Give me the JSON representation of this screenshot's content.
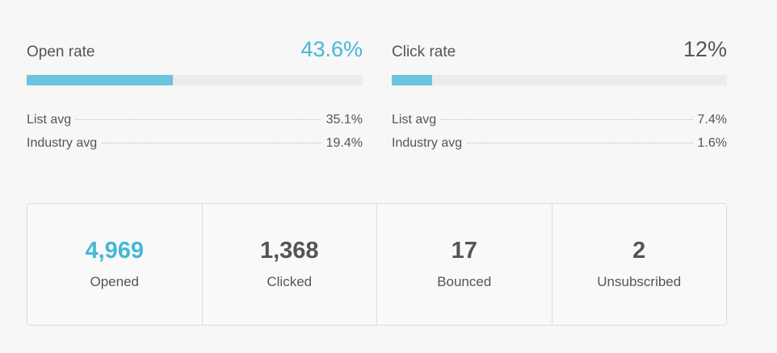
{
  "metrics": [
    {
      "label": "Open rate",
      "value": 43.6,
      "value_label": "43.6%",
      "accent": true,
      "comparisons": [
        {
          "label": "List avg",
          "value": "35.1%"
        },
        {
          "label": "Industry avg",
          "value": "19.4%"
        }
      ]
    },
    {
      "label": "Click rate",
      "value": 12,
      "value_label": "12%",
      "accent": false,
      "comparisons": [
        {
          "label": "List avg",
          "value": "7.4%"
        },
        {
          "label": "Industry avg",
          "value": "1.6%"
        }
      ]
    }
  ],
  "stats": [
    {
      "value": "4,969",
      "label": "Opened"
    },
    {
      "value": "1,368",
      "label": "Clicked"
    },
    {
      "value": "17",
      "label": "Bounced"
    },
    {
      "value": "2",
      "label": "Unsubscribed"
    }
  ]
}
